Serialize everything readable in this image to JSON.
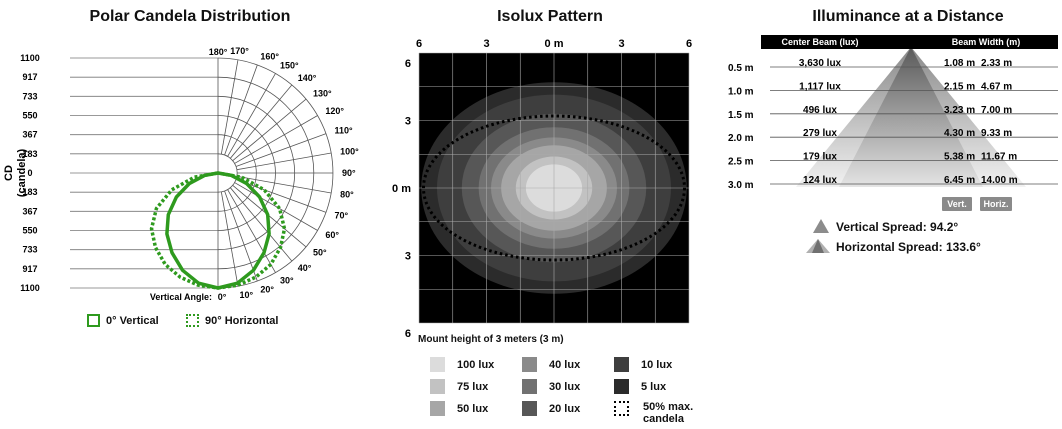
{
  "chart_data": [
    {
      "type": "polar",
      "title": "Polar Candela Distribution",
      "ylabel": "CD",
      "ylabel_unit": "(candela)",
      "radial_ticks": [
        "1100",
        "917",
        "733",
        "550",
        "367",
        "183",
        "0",
        "183",
        "367",
        "550",
        "733",
        "917",
        "1100"
      ],
      "angle_ticks": [
        "0°",
        "10°",
        "20°",
        "30°",
        "40°",
        "50°",
        "60°",
        "70°",
        "80°",
        "90°",
        "100°",
        "110°",
        "120°",
        "130°",
        "140°",
        "150°",
        "160°",
        "170°",
        "180°"
      ],
      "angle_axis_label": "Vertical Angle:",
      "rmax": 1100,
      "series": [
        {
          "name": "0° Vertical",
          "style": "solid",
          "color": "#2e9a1e",
          "angles": [
            0,
            10,
            20,
            30,
            40,
            50,
            60,
            70,
            80,
            90
          ],
          "candela": [
            1100,
            1070,
            990,
            880,
            760,
            620,
            460,
            290,
            130,
            0
          ]
        },
        {
          "name": "90° Horizontal",
          "style": "dotted",
          "color": "#2e9a1e",
          "angles": [
            0,
            10,
            20,
            30,
            40,
            50,
            60,
            70,
            80,
            90
          ],
          "candela": [
            1100,
            1090,
            1060,
            1010,
            930,
            830,
            680,
            470,
            230,
            0
          ]
        }
      ]
    },
    {
      "type": "isolux",
      "title": "Isolux Pattern",
      "x_ticks": [
        "6",
        "3",
        "0 m",
        "3",
        "6"
      ],
      "y_ticks": [
        "6",
        "3",
        "0 m",
        "3",
        "6"
      ],
      "note": "Mount height of 3 meters (3 m)",
      "levels": [
        {
          "label": "5 lux",
          "color": "#2b2b2b",
          "rx": 5.9,
          "ry": 4.7
        },
        {
          "label": "10 lux",
          "color": "#3e3e3e",
          "rx": 5.2,
          "ry": 4.15
        },
        {
          "label": "20 lux",
          "color": "#575757",
          "rx": 4.1,
          "ry": 3.3
        },
        {
          "label": "30 lux",
          "color": "#717171",
          "rx": 3.35,
          "ry": 2.7
        },
        {
          "label": "40 lux",
          "color": "#8a8a8a",
          "rx": 2.8,
          "ry": 2.25
        },
        {
          "label": "50 lux",
          "color": "#a6a6a6",
          "rx": 2.35,
          "ry": 1.9
        },
        {
          "label": "75 lux",
          "color": "#c2c2c2",
          "rx": 1.7,
          "ry": 1.4
        },
        {
          "label": "100 lux",
          "color": "#dcdcdc",
          "rx": 1.25,
          "ry": 1.05
        }
      ],
      "half_candela": {
        "label": "50% max. candela",
        "rx": 5.8,
        "ry": 3.2
      },
      "legend_layout": [
        [
          "100 lux",
          "40 lux",
          "10 lux"
        ],
        [
          "75 lux",
          "30 lux",
          "5 lux"
        ],
        [
          "50 lux",
          "20 lux",
          "50% max. candela"
        ]
      ]
    },
    {
      "type": "table",
      "title": "Illuminance at a Distance",
      "columns": [
        "Center Beam (lux)",
        "Beam Width (m)"
      ],
      "distances": [
        "0.5 m",
        "1.0 m",
        "1.5 m",
        "2.0 m",
        "2.5 m",
        "3.0 m"
      ],
      "rows": [
        {
          "lux": "3,630 lux",
          "vert": "1.08 m",
          "horiz": "2.33 m"
        },
        {
          "lux": "1,117 lux",
          "vert": "2.15 m",
          "horiz": "4.67 m"
        },
        {
          "lux": "496 lux",
          "vert": "3.23 m",
          "horiz": "7.00 m"
        },
        {
          "lux": "279 lux",
          "vert": "4.30 m",
          "horiz": "9.33 m"
        },
        {
          "lux": "179 lux",
          "vert": "5.38 m",
          "horiz": "11.67 m"
        },
        {
          "lux": "124 lux",
          "vert": "6.45 m",
          "horiz": "14.00 m"
        }
      ],
      "vert_btn": "Vert.",
      "horiz_btn": "Horiz.",
      "vertical_spread": "Vertical Spread: 94.2°",
      "horizontal_spread": "Horizontal Spread: 133.6°"
    }
  ]
}
